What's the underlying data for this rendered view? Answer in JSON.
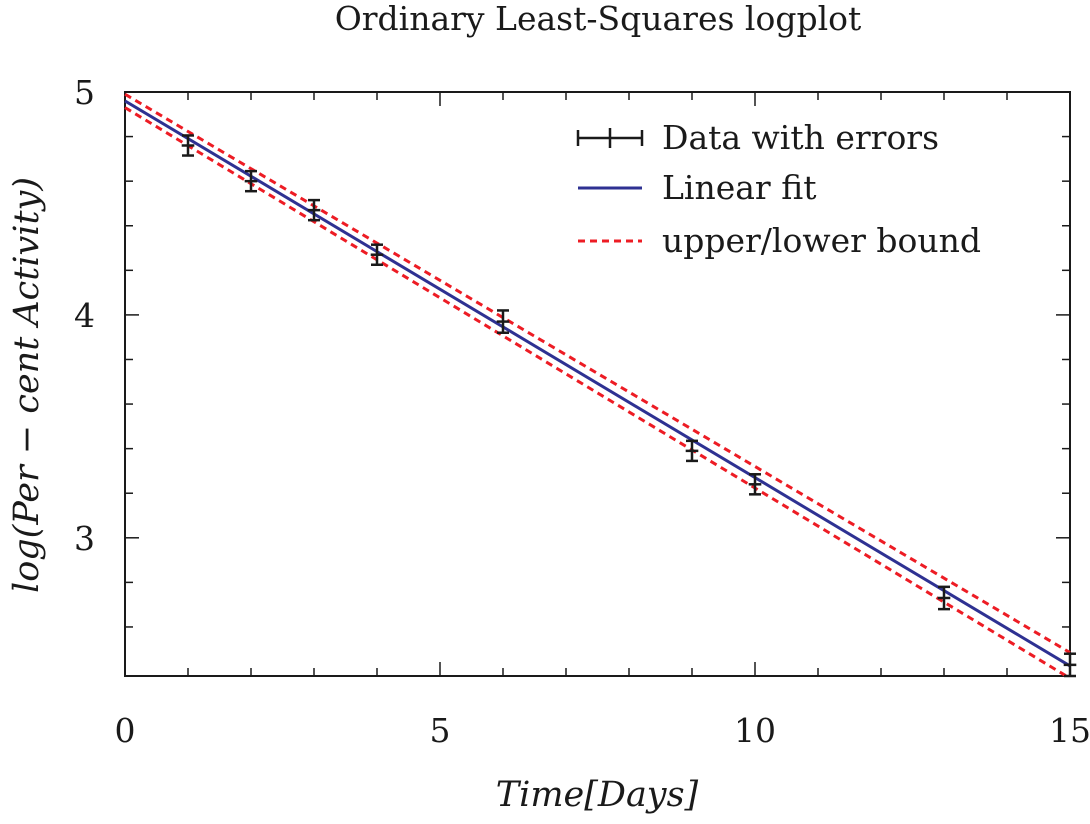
{
  "chart_data": {
    "type": "scatter",
    "title": "Ordinary Least-Squares logplot",
    "xlabel": "Time[Days]",
    "ylabel": "log(Per − cent Activity)",
    "xlim": [
      0,
      15
    ],
    "ylim": [
      2.38,
      5.0
    ],
    "x_ticks": [
      0,
      5,
      10,
      15
    ],
    "y_ticks": [
      3,
      4,
      5
    ],
    "grid": false,
    "legend_position": "top-right",
    "series": [
      {
        "name": "Data with errors",
        "kind": "errorbar",
        "color": "#1a1a1a",
        "x": [
          1,
          2,
          3,
          4,
          6,
          9,
          10,
          13,
          15
        ],
        "y": [
          4.76,
          4.6,
          4.47,
          4.27,
          3.97,
          3.39,
          3.24,
          2.73,
          2.43
        ],
        "yerr": [
          0.045,
          0.045,
          0.045,
          0.045,
          0.05,
          0.045,
          0.045,
          0.05,
          0.05
        ],
        "xerr": [
          0.1,
          0.1,
          0.1,
          0.1,
          0.1,
          0.1,
          0.1,
          0.1,
          0.1
        ]
      },
      {
        "name": "Linear fit",
        "kind": "line",
        "color": "#2e3192",
        "x": [
          0,
          15
        ],
        "y": [
          4.96,
          2.425
        ]
      },
      {
        "name": "upper/lower bound",
        "kind": "dashed-line",
        "color": "#ed1c24",
        "bounds": [
          {
            "x": [
              0,
              15
            ],
            "y": [
              4.99,
              2.485
            ]
          },
          {
            "x": [
              0,
              15
            ],
            "y": [
              4.93,
              2.37
            ]
          }
        ]
      }
    ]
  }
}
